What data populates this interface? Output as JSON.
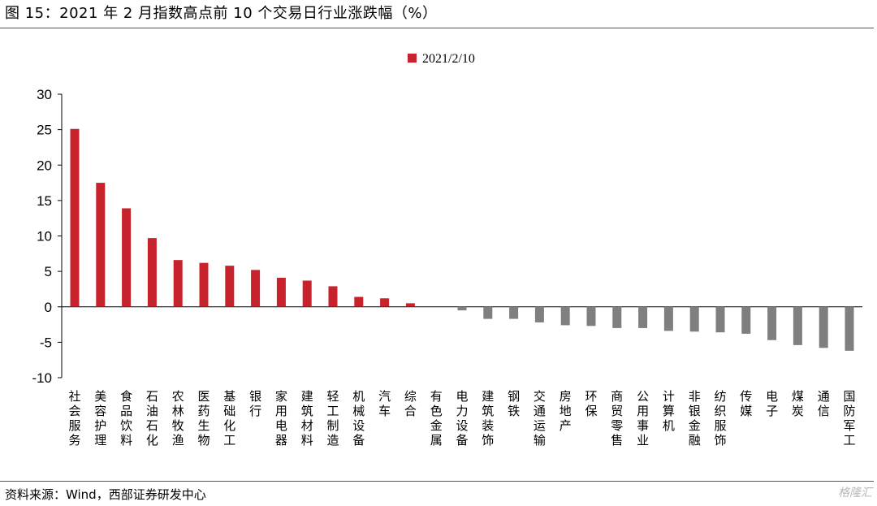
{
  "title": "图 15：2021 年 2 月指数高点前 10 个交易日行业涨跌幅（%）",
  "source": "资料来源：Wind，西部证券研发中心",
  "watermark": "格隆汇",
  "colors": {
    "positive": "#c8232c",
    "negative": "#7f7f7f",
    "axis": "#000000"
  },
  "chart_data": {
    "type": "bar",
    "legend_position": "top-center",
    "grid": false,
    "ylim": [
      -10,
      30
    ],
    "yticks": [
      30,
      25,
      20,
      15,
      10,
      5,
      0,
      -5,
      -10
    ],
    "series": [
      {
        "name": "2021/2/10",
        "values": [
          25.1,
          17.5,
          13.9,
          9.7,
          6.6,
          6.2,
          5.8,
          5.2,
          4.1,
          3.7,
          2.9,
          1.4,
          1.2,
          0.5,
          0.0,
          -0.5,
          -1.7,
          -1.7,
          -2.2,
          -2.6,
          -2.7,
          -3.0,
          -3.0,
          -3.4,
          -3.5,
          -3.6,
          -3.8,
          -4.7,
          -5.4,
          -5.8,
          -6.2
        ]
      }
    ],
    "categories": [
      "社会服务",
      "美容护理",
      "食品饮料",
      "石油石化",
      "农林牧渔",
      "医药生物",
      "基础化工",
      "银行",
      "家用电器",
      "建筑材料",
      "轻工制造",
      "机械设备",
      "汽车",
      "综合",
      "有色金属",
      "电力设备",
      "建筑装饰",
      "钢铁",
      "交通运输",
      "房地产",
      "环保",
      "商贸零售",
      "公用事业",
      "计算机",
      "非银金融",
      "纺织服饰",
      "传媒",
      "电子",
      "煤炭",
      "通信",
      "国防军工"
    ],
    "title": "",
    "xlabel": "",
    "ylabel": ""
  }
}
